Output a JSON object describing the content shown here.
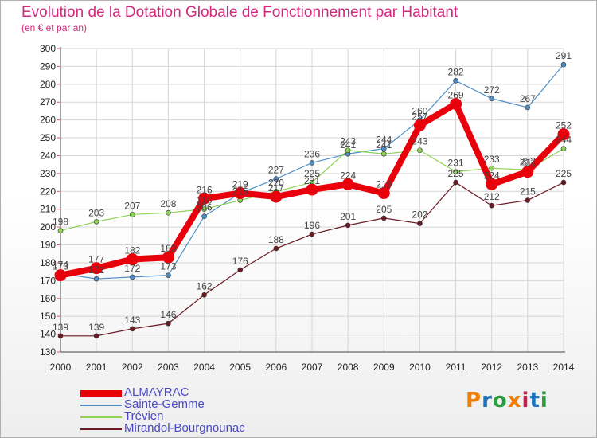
{
  "title": "Evolution de la Dotation Globale de Fonctionnement par Habitant",
  "subtitle": "(en € et par an)",
  "logo": {
    "text": "Proxiti",
    "colors": [
      "#f07d00",
      "#1e73be",
      "#2a9d3f",
      "#f07d00",
      "#c81e50",
      "#1e73be",
      "#2a9d3f"
    ]
  },
  "colors": {
    "title": "#d12a7d",
    "legend_text": "#4a4ac4"
  },
  "chart_data": {
    "type": "line",
    "title": "Evolution de la Dotation Globale de Fonctionnement par Habitant",
    "subtitle": "(en € et par an)",
    "x": [
      "2000",
      "2001",
      "2002",
      "2003",
      "2004",
      "2005",
      "2006",
      "2007",
      "2008",
      "2009",
      "2010",
      "2011",
      "2012",
      "2013",
      "2014"
    ],
    "ylim": [
      130,
      300
    ],
    "yticks": [
      130,
      140,
      150,
      160,
      170,
      180,
      190,
      200,
      210,
      220,
      230,
      240,
      250,
      260,
      270,
      280,
      290,
      300
    ],
    "grid": true,
    "legend_position": "bottom-left",
    "series": [
      {
        "name": "ALMAYRAC",
        "color": "#e8000b",
        "emphasis": true,
        "values": [
          173,
          177,
          182,
          183,
          216,
          219,
          217,
          221,
          224,
          219,
          257,
          269,
          224,
          231,
          252
        ]
      },
      {
        "name": "Sainte-Gemme",
        "color": "#4f8fc7",
        "values": [
          174,
          171,
          172,
          173,
          206,
          219,
          227,
          236,
          241,
          244,
          260,
          282,
          272,
          267,
          291
        ]
      },
      {
        "name": "Trévien",
        "color": "#8ed455",
        "values": [
          198,
          203,
          207,
          208,
          210,
          215,
          220,
          225,
          243,
          241,
          243,
          231,
          233,
          232,
          244
        ]
      },
      {
        "name": "Mirandol-Bourgnounac",
        "color": "#6b1a24",
        "values": [
          139,
          139,
          143,
          146,
          162,
          176,
          188,
          196,
          201,
          205,
          202,
          225,
          212,
          215,
          225
        ]
      }
    ]
  }
}
